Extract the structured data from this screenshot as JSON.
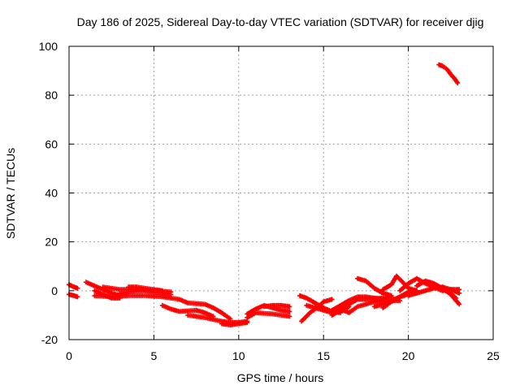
{
  "chart_data": {
    "type": "scatter",
    "title": "Day 186 of 2025, Sidereal Day-to-day VTEC variation (SDTVAR) for receiver djig",
    "xlabel": "GPS time / hours",
    "ylabel": "SDTVAR / TECUs",
    "xlim": [
      0,
      25
    ],
    "ylim": [
      -20,
      100
    ],
    "xticks": [
      0,
      5,
      10,
      15,
      20,
      25
    ],
    "yticks": [
      -20,
      0,
      20,
      40,
      60,
      80,
      100
    ],
    "grid": true,
    "marker": "plus",
    "series": [
      {
        "name": "SDTVAR",
        "color": "#ff0000",
        "tracks": [
          [
            [
              0.0,
              2.5
            ],
            [
              0.3,
              1.5
            ],
            [
              0.5,
              1.0
            ]
          ],
          [
            [
              0.0,
              -1.5
            ],
            [
              0.3,
              -2.0
            ],
            [
              0.5,
              -2.5
            ]
          ],
          [
            [
              1.0,
              3.5
            ],
            [
              1.5,
              2.0
            ],
            [
              2.0,
              0.5
            ],
            [
              2.5,
              -1.0
            ],
            [
              3.0,
              -2.0
            ]
          ],
          [
            [
              1.5,
              0.0
            ],
            [
              2.0,
              -1.5
            ],
            [
              2.5,
              -3.0
            ],
            [
              3.0,
              -3.0
            ]
          ],
          [
            [
              2.0,
              1.5
            ],
            [
              3.0,
              0.5
            ],
            [
              4.0,
              0.5
            ],
            [
              5.0,
              -0.5
            ],
            [
              6.0,
              -1.5
            ]
          ],
          [
            [
              3.0,
              -1.0
            ],
            [
              4.0,
              0.0
            ],
            [
              5.0,
              0.0
            ],
            [
              6.0,
              -0.5
            ]
          ],
          [
            [
              3.5,
              1.5
            ],
            [
              4.0,
              1.5
            ],
            [
              5.0,
              0.5
            ],
            [
              5.5,
              0.0
            ]
          ],
          [
            [
              1.5,
              -2.0
            ],
            [
              2.5,
              -2.5
            ],
            [
              3.5,
              -2.0
            ],
            [
              4.5,
              -2.0
            ],
            [
              5.5,
              -2.5
            ],
            [
              6.5,
              -3.5
            ],
            [
              7.0,
              -5.0
            ]
          ],
          [
            [
              5.5,
              -6.0
            ],
            [
              6.0,
              -7.5
            ],
            [
              6.5,
              -8.5
            ],
            [
              7.5,
              -8.0
            ],
            [
              8.0,
              -9.0
            ],
            [
              8.5,
              -10.5
            ]
          ],
          [
            [
              7.0,
              -5.0
            ],
            [
              8.0,
              -5.5
            ],
            [
              8.5,
              -7.0
            ],
            [
              9.0,
              -9.0
            ],
            [
              9.5,
              -11.5
            ]
          ],
          [
            [
              7.0,
              -10.0
            ],
            [
              8.0,
              -11.0
            ],
            [
              9.0,
              -12.5
            ],
            [
              9.5,
              -13.0
            ],
            [
              10.0,
              -13.0
            ],
            [
              10.5,
              -12.5
            ]
          ],
          [
            [
              9.0,
              -13.5
            ],
            [
              9.5,
              -14.0
            ],
            [
              10.0,
              -13.5
            ],
            [
              10.5,
              -13.0
            ]
          ],
          [
            [
              10.5,
              -9.5
            ],
            [
              11.0,
              -7.5
            ],
            [
              11.5,
              -6.0
            ],
            [
              12.0,
              -7.0
            ],
            [
              12.5,
              -8.0
            ],
            [
              13.0,
              -8.5
            ]
          ],
          [
            [
              10.5,
              -11.0
            ],
            [
              11.0,
              -9.0
            ],
            [
              12.0,
              -9.5
            ],
            [
              13.0,
              -10.5
            ]
          ],
          [
            [
              11.5,
              -6.5
            ],
            [
              12.0,
              -6.0
            ],
            [
              12.5,
              -6.0
            ],
            [
              13.0,
              -6.5
            ]
          ],
          [
            [
              13.7,
              -12.5
            ],
            [
              14.2,
              -9.0
            ],
            [
              14.7,
              -6.5
            ],
            [
              15.0,
              -4.5
            ],
            [
              15.5,
              -3.5
            ]
          ],
          [
            [
              13.6,
              -2.0
            ],
            [
              14.0,
              -3.0
            ],
            [
              14.5,
              -5.0
            ],
            [
              15.0,
              -7.0
            ],
            [
              15.5,
              -8.5
            ],
            [
              16.0,
              -9.0
            ]
          ],
          [
            [
              14.0,
              -6.0
            ],
            [
              14.5,
              -7.0
            ],
            [
              15.0,
              -8.0
            ],
            [
              15.5,
              -9.0
            ],
            [
              16.0,
              -8.5
            ],
            [
              16.5,
              -6.5
            ]
          ],
          [
            [
              15.5,
              -8.0
            ],
            [
              16.0,
              -6.0
            ],
            [
              16.5,
              -4.0
            ],
            [
              17.0,
              -2.5
            ],
            [
              17.5,
              -2.5
            ],
            [
              18.0,
              -3.0
            ],
            [
              18.5,
              -3.5
            ]
          ],
          [
            [
              15.5,
              -10.0
            ],
            [
              16.0,
              -8.0
            ],
            [
              16.5,
              -5.5
            ],
            [
              17.0,
              -3.5
            ],
            [
              17.5,
              -3.5
            ],
            [
              18.5,
              -3.0
            ],
            [
              19.0,
              -2.5
            ]
          ],
          [
            [
              16.0,
              -7.5
            ],
            [
              16.5,
              -9.0
            ],
            [
              17.0,
              -6.5
            ],
            [
              18.0,
              -4.5
            ],
            [
              19.0,
              -4.0
            ],
            [
              19.5,
              -4.0
            ]
          ],
          [
            [
              17.0,
              5.0
            ],
            [
              17.5,
              4.0
            ],
            [
              18.0,
              1.0
            ],
            [
              18.5,
              -1.0
            ],
            [
              19.0,
              -2.0
            ]
          ],
          [
            [
              18.0,
              -6.5
            ],
            [
              18.5,
              -5.5
            ],
            [
              19.0,
              -4.0
            ],
            [
              19.5,
              -2.5
            ],
            [
              20.0,
              -1.5
            ],
            [
              20.5,
              -1.0
            ]
          ],
          [
            [
              18.5,
              -7.0
            ],
            [
              19.0,
              -4.5
            ],
            [
              19.5,
              -2.5
            ],
            [
              20.0,
              -0.5
            ],
            [
              20.5,
              0.0
            ]
          ],
          [
            [
              18.5,
              0.5
            ],
            [
              19.0,
              2.5
            ],
            [
              19.3,
              6.0
            ],
            [
              19.6,
              4.0
            ],
            [
              20.0,
              1.0
            ],
            [
              20.5,
              0.0
            ]
          ],
          [
            [
              19.5,
              0.0
            ],
            [
              20.0,
              3.0
            ],
            [
              20.5,
              5.0
            ],
            [
              21.0,
              3.0
            ],
            [
              21.5,
              1.5
            ],
            [
              22.0,
              0.0
            ],
            [
              22.5,
              0.5
            ],
            [
              23.0,
              -1.0
            ]
          ],
          [
            [
              20.0,
              -2.0
            ],
            [
              20.5,
              -1.0
            ],
            [
              21.0,
              0.0
            ],
            [
              21.5,
              1.0
            ],
            [
              22.0,
              1.5
            ],
            [
              22.5,
              0.5
            ],
            [
              23.0,
              0.5
            ]
          ],
          [
            [
              20.5,
              2.0
            ],
            [
              21.0,
              4.0
            ],
            [
              21.5,
              3.0
            ],
            [
              22.0,
              1.0
            ],
            [
              22.5,
              -1.5
            ],
            [
              23.0,
              -5.5
            ]
          ],
          [
            [
              22.0,
              1.5
            ],
            [
              22.5,
              -1.0
            ],
            [
              22.8,
              -3.0
            ]
          ],
          [
            [
              21.8,
              92.5
            ],
            [
              22.0,
              92.0
            ],
            [
              22.3,
              90.5
            ],
            [
              22.5,
              88.5
            ],
            [
              22.7,
              87.0
            ],
            [
              22.9,
              85.0
            ]
          ]
        ]
      }
    ]
  }
}
